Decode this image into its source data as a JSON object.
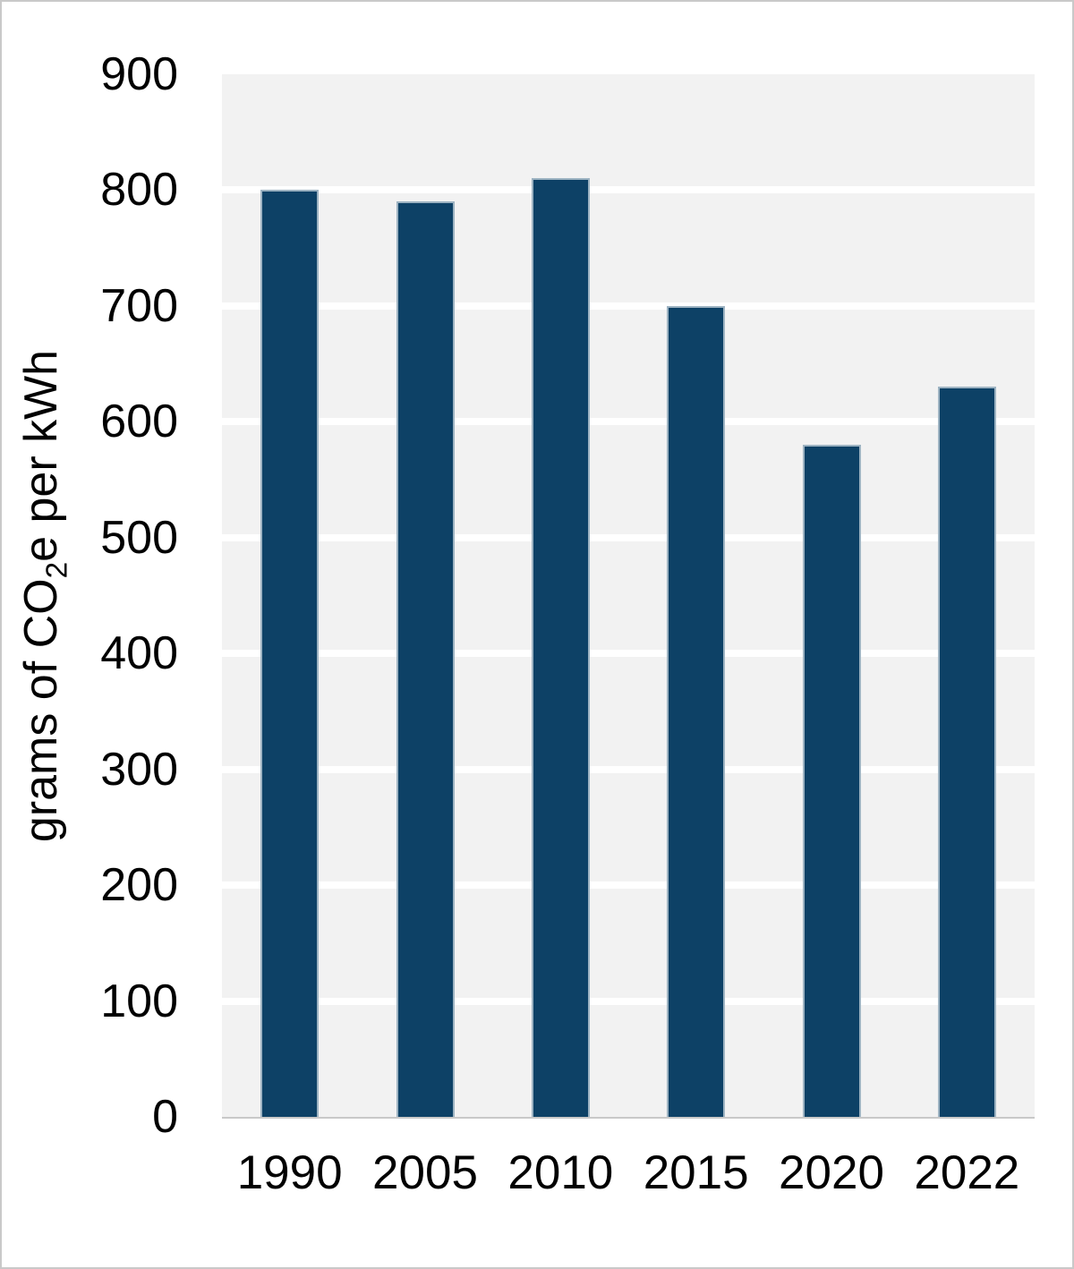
{
  "chart_data": {
    "type": "bar",
    "title": "",
    "xlabel": "",
    "ylabel": "grams of CO2e per kWh",
    "ylabel_parts": {
      "pre": "grams of CO",
      "sub": "2",
      "post": "e per kWh"
    },
    "categories": [
      "1990",
      "2005",
      "2010",
      "2015",
      "2020",
      "2022"
    ],
    "values": [
      800,
      790,
      810,
      700,
      580,
      630
    ],
    "ylim": [
      0,
      900
    ],
    "yticks": [
      0,
      100,
      200,
      300,
      400,
      500,
      600,
      700,
      800,
      900
    ],
    "grid": "horizontal",
    "legend_position": "none",
    "colors": {
      "bar_fill": "#0d4166",
      "bar_border": "#9db3c2",
      "plot_background": "#f2f2f2",
      "gridline": "#ffffff",
      "axis_line": "#c9c9c9",
      "text": "#000000",
      "page_background": "#ffffff",
      "page_border": "#c9c9c9"
    }
  }
}
